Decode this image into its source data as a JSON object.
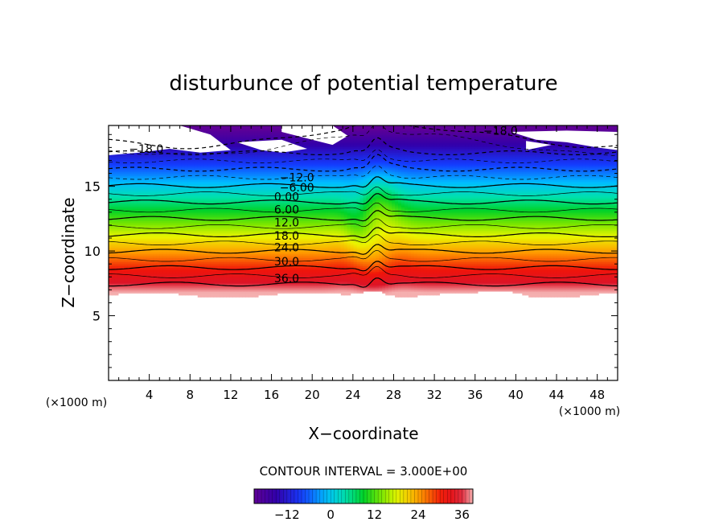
{
  "chart_data": {
    "type": "contour",
    "title": "disturbunce of potential temperature",
    "xlabel": "X−coordinate",
    "ylabel": "Z−coordinate",
    "x_unit_label": "(×1000 m)",
    "y_unit_label": "(×1000 m)",
    "xlim": [
      0,
      50
    ],
    "ylim": [
      0,
      19.7
    ],
    "x_ticks": [
      4,
      8,
      12,
      16,
      20,
      24,
      28,
      32,
      36,
      40,
      44,
      48
    ],
    "x_tick_labels": [
      "4",
      "8",
      "12",
      "16",
      "20",
      "24",
      "28",
      "32",
      "36",
      "40",
      "44",
      "48"
    ],
    "y_ticks": [
      5,
      10,
      15
    ],
    "y_tick_labels": [
      "5",
      "10",
      "15"
    ],
    "contour_interval_text": "CONTOUR INTERVAL = 3.000E+00",
    "contour_interval": 3.0,
    "contour_labels": [
      {
        "text": "−18.0",
        "x": 3.7,
        "z": 17.9
      },
      {
        "text": "−18.0",
        "x": 38.5,
        "z": 19.3
      },
      {
        "text": "−12.0",
        "x": 18.5,
        "z": 15.7
      },
      {
        "text": "−6.00",
        "x": 18.5,
        "z": 14.9
      },
      {
        "text": "0.00",
        "x": 17.5,
        "z": 14.2
      },
      {
        "text": "6.00",
        "x": 17.5,
        "z": 13.2
      },
      {
        "text": "12.0",
        "x": 17.5,
        "z": 12.2
      },
      {
        "text": "18.0",
        "x": 17.5,
        "z": 11.2
      },
      {
        "text": "24.0",
        "x": 17.5,
        "z": 10.3
      },
      {
        "text": "30.0",
        "x": 17.5,
        "z": 9.2
      },
      {
        "text": "36.0",
        "x": 17.5,
        "z": 7.9
      }
    ],
    "field": {
      "zmin_data": 6.6,
      "zmax_data": 19.7,
      "value_at_bottom": 40,
      "value_at_top": -22,
      "anomaly_center_x": 26.5,
      "anomaly_center_z": 13.5
    },
    "colorbar": {
      "vmin": -21,
      "vmax": 39,
      "tick_values": [
        -12,
        0,
        12,
        24,
        36
      ],
      "tick_labels": [
        "−12",
        "0",
        "12",
        "24",
        "36"
      ]
    }
  },
  "colors": {
    "frame": "#000000",
    "background": "#ffffff"
  }
}
